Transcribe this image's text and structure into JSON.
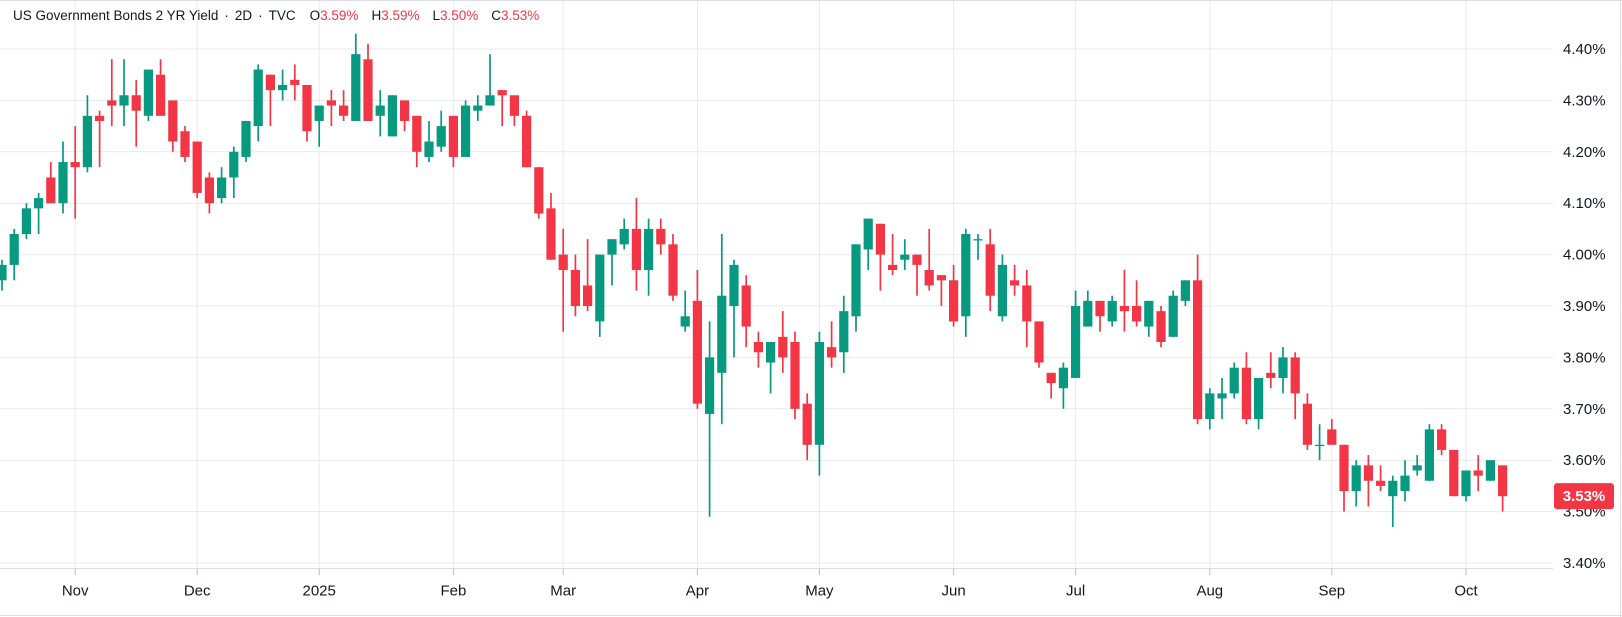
{
  "legend": {
    "title": "US Government Bonds 2 YR Yield",
    "separator": "·",
    "interval": "2D",
    "exchange": "TVC",
    "ohlc": [
      {
        "label": "O",
        "value": "3.59%"
      },
      {
        "label": "H",
        "value": "3.59%"
      },
      {
        "label": "L",
        "value": "3.50%"
      },
      {
        "label": "C",
        "value": "3.53%"
      }
    ]
  },
  "chart_data": {
    "type": "candlestick",
    "title": "US Government Bonds 2 YR Yield",
    "interval": "2D",
    "exchange": "TVC",
    "legend_ohlc": {
      "open": "3.59%",
      "high": "3.59%",
      "low": "3.50%",
      "close": "3.53%"
    },
    "y_axis": {
      "unit": "%",
      "min": 3.4,
      "max": 4.4,
      "tick_step": 0.1,
      "ticks": [
        "4.40%",
        "4.30%",
        "4.20%",
        "4.10%",
        "4.00%",
        "3.90%",
        "3.80%",
        "3.70%",
        "3.60%",
        "3.50%",
        "3.40%"
      ],
      "grid": true
    },
    "x_axis": {
      "ticks": [
        {
          "label": "Nov",
          "index": 6
        },
        {
          "label": "Dec",
          "index": 16
        },
        {
          "label": "2025",
          "index": 26
        },
        {
          "label": "Feb",
          "index": 37
        },
        {
          "label": "Mar",
          "index": 46
        },
        {
          "label": "Apr",
          "index": 57
        },
        {
          "label": "May",
          "index": 67
        },
        {
          "label": "Jun",
          "index": 78
        },
        {
          "label": "Jul",
          "index": 88
        },
        {
          "label": "Aug",
          "index": 99
        },
        {
          "label": "Sep",
          "index": 109
        },
        {
          "label": "Oct",
          "index": 120
        }
      ],
      "grid": true
    },
    "last_price": {
      "text": "3.53%",
      "value": 3.53
    },
    "colors": {
      "up": "#089981",
      "down": "#f23645",
      "last_price_bg": "#f23645",
      "last_price_fg": "#ffffff",
      "grid": "#e7e9ee",
      "tick": "#b9bdc5",
      "border": "#dcdfe5",
      "axis_text": "#131722",
      "legend_text": "#131722",
      "legend_value_text": "#f23645",
      "background": "#ffffff"
    },
    "candles_fields": [
      "open",
      "high",
      "low",
      "close"
    ],
    "candles": [
      [
        3.95,
        3.99,
        3.93,
        3.98
      ],
      [
        3.98,
        4.05,
        3.95,
        4.04
      ],
      [
        4.04,
        4.1,
        4.03,
        4.09
      ],
      [
        4.09,
        4.12,
        4.04,
        4.11
      ],
      [
        4.15,
        4.18,
        4.1,
        4.1
      ],
      [
        4.1,
        4.22,
        4.08,
        4.18
      ],
      [
        4.18,
        4.25,
        4.07,
        4.17
      ],
      [
        4.17,
        4.31,
        4.16,
        4.27
      ],
      [
        4.27,
        4.28,
        4.17,
        4.26
      ],
      [
        4.3,
        4.38,
        4.25,
        4.29
      ],
      [
        4.29,
        4.38,
        4.25,
        4.31
      ],
      [
        4.31,
        4.34,
        4.21,
        4.28
      ],
      [
        4.27,
        4.36,
        4.26,
        4.36
      ],
      [
        4.35,
        4.38,
        4.27,
        4.27
      ],
      [
        4.3,
        4.3,
        4.2,
        4.22
      ],
      [
        4.24,
        4.25,
        4.18,
        4.19
      ],
      [
        4.22,
        4.22,
        4.11,
        4.12
      ],
      [
        4.15,
        4.16,
        4.08,
        4.1
      ],
      [
        4.11,
        4.17,
        4.1,
        4.15
      ],
      [
        4.15,
        4.21,
        4.11,
        4.2
      ],
      [
        4.19,
        4.26,
        4.18,
        4.26
      ],
      [
        4.25,
        4.37,
        4.22,
        4.36
      ],
      [
        4.35,
        4.35,
        4.25,
        4.32
      ],
      [
        4.32,
        4.36,
        4.3,
        4.33
      ],
      [
        4.34,
        4.37,
        4.3,
        4.33
      ],
      [
        4.33,
        4.33,
        4.22,
        4.24
      ],
      [
        4.26,
        4.29,
        4.21,
        4.29
      ],
      [
        4.3,
        4.32,
        4.25,
        4.29
      ],
      [
        4.29,
        4.32,
        4.26,
        4.27
      ],
      [
        4.26,
        4.43,
        4.26,
        4.39
      ],
      [
        4.38,
        4.41,
        4.26,
        4.26
      ],
      [
        4.27,
        4.32,
        4.23,
        4.29
      ],
      [
        4.23,
        4.31,
        4.23,
        4.31
      ],
      [
        4.3,
        4.3,
        4.24,
        4.26
      ],
      [
        4.27,
        4.27,
        4.17,
        4.2
      ],
      [
        4.19,
        4.26,
        4.18,
        4.22
      ],
      [
        4.21,
        4.28,
        4.2,
        4.25
      ],
      [
        4.27,
        4.27,
        4.17,
        4.19
      ],
      [
        4.19,
        4.3,
        4.19,
        4.29
      ],
      [
        4.28,
        4.31,
        4.26,
        4.29
      ],
      [
        4.29,
        4.39,
        4.29,
        4.31
      ],
      [
        4.32,
        4.32,
        4.25,
        4.31
      ],
      [
        4.31,
        4.31,
        4.25,
        4.27
      ],
      [
        4.27,
        4.28,
        4.17,
        4.17
      ],
      [
        4.17,
        4.17,
        4.07,
        4.08
      ],
      [
        4.09,
        4.12,
        3.99,
        3.99
      ],
      [
        4.0,
        4.05,
        3.85,
        3.97
      ],
      [
        3.97,
        4.0,
        3.88,
        3.9
      ],
      [
        3.94,
        4.03,
        3.89,
        3.9
      ],
      [
        3.87,
        4.0,
        3.84,
        4.0
      ],
      [
        4.0,
        4.03,
        3.94,
        4.03
      ],
      [
        4.02,
        4.07,
        4.01,
        4.05
      ],
      [
        4.05,
        4.11,
        3.93,
        3.97
      ],
      [
        3.97,
        4.07,
        3.92,
        4.05
      ],
      [
        4.05,
        4.07,
        4.0,
        4.02
      ],
      [
        4.02,
        4.04,
        3.91,
        3.92
      ],
      [
        3.86,
        3.93,
        3.85,
        3.88
      ],
      [
        3.91,
        3.97,
        3.7,
        3.71
      ],
      [
        3.69,
        3.87,
        3.49,
        3.8
      ],
      [
        3.77,
        4.04,
        3.67,
        3.92
      ],
      [
        3.9,
        3.99,
        3.8,
        3.98
      ],
      [
        3.94,
        3.96,
        3.82,
        3.86
      ],
      [
        3.83,
        3.85,
        3.78,
        3.81
      ],
      [
        3.79,
        3.83,
        3.73,
        3.83
      ],
      [
        3.84,
        3.89,
        3.77,
        3.8
      ],
      [
        3.83,
        3.85,
        3.68,
        3.7
      ],
      [
        3.71,
        3.73,
        3.6,
        3.63
      ],
      [
        3.63,
        3.85,
        3.57,
        3.83
      ],
      [
        3.82,
        3.87,
        3.78,
        3.8
      ],
      [
        3.81,
        3.92,
        3.77,
        3.89
      ],
      [
        3.88,
        4.02,
        3.85,
        4.02
      ],
      [
        4.01,
        4.07,
        3.97,
        4.07
      ],
      [
        4.06,
        4.06,
        3.93,
        4.0
      ],
      [
        3.98,
        4.04,
        3.96,
        3.97
      ],
      [
        3.99,
        4.03,
        3.97,
        4.0
      ],
      [
        4.0,
        4.0,
        3.92,
        3.98
      ],
      [
        3.97,
        4.05,
        3.93,
        3.94
      ],
      [
        3.96,
        3.96,
        3.9,
        3.95
      ],
      [
        3.95,
        3.98,
        3.86,
        3.87
      ],
      [
        3.88,
        4.05,
        3.84,
        4.04
      ],
      [
        4.03,
        4.04,
        3.99,
        4.03
      ],
      [
        4.02,
        4.05,
        3.89,
        3.92
      ],
      [
        3.88,
        4.0,
        3.87,
        3.98
      ],
      [
        3.95,
        3.98,
        3.92,
        3.94
      ],
      [
        3.94,
        3.97,
        3.82,
        3.87
      ],
      [
        3.87,
        3.87,
        3.78,
        3.79
      ],
      [
        3.77,
        3.77,
        3.72,
        3.75
      ],
      [
        3.74,
        3.79,
        3.7,
        3.78
      ],
      [
        3.76,
        3.93,
        3.76,
        3.9
      ],
      [
        3.86,
        3.93,
        3.86,
        3.91
      ],
      [
        3.91,
        3.91,
        3.85,
        3.88
      ],
      [
        3.87,
        3.92,
        3.86,
        3.91
      ],
      [
        3.9,
        3.97,
        3.85,
        3.89
      ],
      [
        3.9,
        3.95,
        3.86,
        3.87
      ],
      [
        3.86,
        3.91,
        3.84,
        3.91
      ],
      [
        3.89,
        3.9,
        3.82,
        3.83
      ],
      [
        3.84,
        3.93,
        3.84,
        3.92
      ],
      [
        3.91,
        3.95,
        3.9,
        3.95
      ],
      [
        3.95,
        4.0,
        3.67,
        3.68
      ],
      [
        3.68,
        3.74,
        3.66,
        3.73
      ],
      [
        3.72,
        3.76,
        3.68,
        3.73
      ],
      [
        3.73,
        3.79,
        3.72,
        3.78
      ],
      [
        3.78,
        3.81,
        3.67,
        3.68
      ],
      [
        3.68,
        3.76,
        3.66,
        3.76
      ],
      [
        3.77,
        3.81,
        3.74,
        3.76
      ],
      [
        3.76,
        3.82,
        3.73,
        3.8
      ],
      [
        3.8,
        3.81,
        3.68,
        3.73
      ],
      [
        3.71,
        3.73,
        3.62,
        3.63
      ],
      [
        3.63,
        3.67,
        3.6,
        3.63
      ],
      [
        3.66,
        3.68,
        3.63,
        3.63
      ],
      [
        3.63,
        3.63,
        3.5,
        3.54
      ],
      [
        3.54,
        3.6,
        3.51,
        3.59
      ],
      [
        3.59,
        3.61,
        3.51,
        3.56
      ],
      [
        3.56,
        3.59,
        3.54,
        3.55
      ],
      [
        3.53,
        3.57,
        3.47,
        3.56
      ],
      [
        3.54,
        3.6,
        3.52,
        3.57
      ],
      [
        3.58,
        3.61,
        3.57,
        3.59
      ],
      [
        3.56,
        3.67,
        3.56,
        3.66
      ],
      [
        3.66,
        3.67,
        3.61,
        3.62
      ],
      [
        3.62,
        3.62,
        3.53,
        3.53
      ],
      [
        3.53,
        3.58,
        3.52,
        3.58
      ],
      [
        3.58,
        3.61,
        3.54,
        3.57
      ],
      [
        3.56,
        3.6,
        3.56,
        3.6
      ],
      [
        3.59,
        3.59,
        3.5,
        3.53
      ]
    ]
  }
}
